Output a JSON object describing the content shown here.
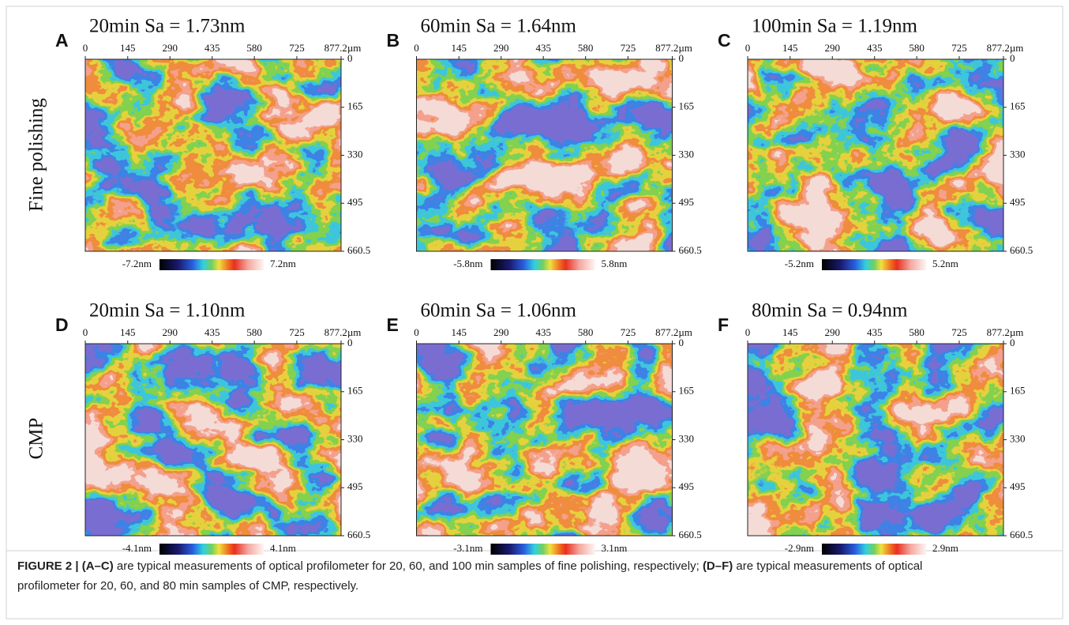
{
  "figure": {
    "row_labels": [
      "Fine polishing",
      "CMP"
    ],
    "panels": [
      {
        "letter": "A",
        "title": "20min  Sa = 1.73nm",
        "x_ticks": [
          "0",
          "145",
          "290",
          "435",
          "580",
          "725",
          "877.2µm"
        ],
        "y_ticks": [
          "0",
          "165",
          "330",
          "495",
          "660.5"
        ],
        "scale_min": "-7.2nm",
        "scale_max": "7.2nm"
      },
      {
        "letter": "B",
        "title": "60min  Sa = 1.64nm",
        "x_ticks": [
          "0",
          "145",
          "290",
          "435",
          "580",
          "725",
          "877.2µm"
        ],
        "y_ticks": [
          "0",
          "165",
          "330",
          "495",
          "660.5"
        ],
        "scale_min": "-5.8nm",
        "scale_max": "5.8nm"
      },
      {
        "letter": "C",
        "title": "100min  Sa = 1.19nm",
        "x_ticks": [
          "0",
          "145",
          "290",
          "435",
          "580",
          "725",
          "877.2µm"
        ],
        "y_ticks": [
          "0",
          "165",
          "330",
          "495",
          "660.5"
        ],
        "scale_min": "-5.2nm",
        "scale_max": "5.2nm"
      },
      {
        "letter": "D",
        "title": "20min  Sa = 1.10nm",
        "x_ticks": [
          "0",
          "145",
          "290",
          "435",
          "580",
          "725",
          "877.2µm"
        ],
        "y_ticks": [
          "0",
          "165",
          "330",
          "495",
          "660.5"
        ],
        "scale_min": "-4.1nm",
        "scale_max": "4.1nm"
      },
      {
        "letter": "E",
        "title": "60min  Sa = 1.06nm",
        "x_ticks": [
          "0",
          "145",
          "290",
          "435",
          "580",
          "725",
          "877.2µm"
        ],
        "y_ticks": [
          "0",
          "165",
          "330",
          "495",
          "660.5"
        ],
        "scale_min": "-3.1nm",
        "scale_max": "3.1nm"
      },
      {
        "letter": "F",
        "title": "80min  Sa = 0.94nm",
        "x_ticks": [
          "0",
          "145",
          "290",
          "435",
          "580",
          "725",
          "877.2µm"
        ],
        "y_ticks": [
          "0",
          "165",
          "330",
          "495",
          "660.5"
        ],
        "scale_min": "-2.9nm",
        "scale_max": "2.9nm"
      }
    ]
  },
  "caption": {
    "label": "FIGURE 2 | (A–C)",
    "text_1": " are typical measurements of optical profilometer for 20, 60, and 100 min samples of fine polishing, respectively; ",
    "label_2": "(D–F)",
    "text_2": " are typical measurements of optical profilometer for 20, 60, and 80 min samples of CMP, respectively."
  }
}
